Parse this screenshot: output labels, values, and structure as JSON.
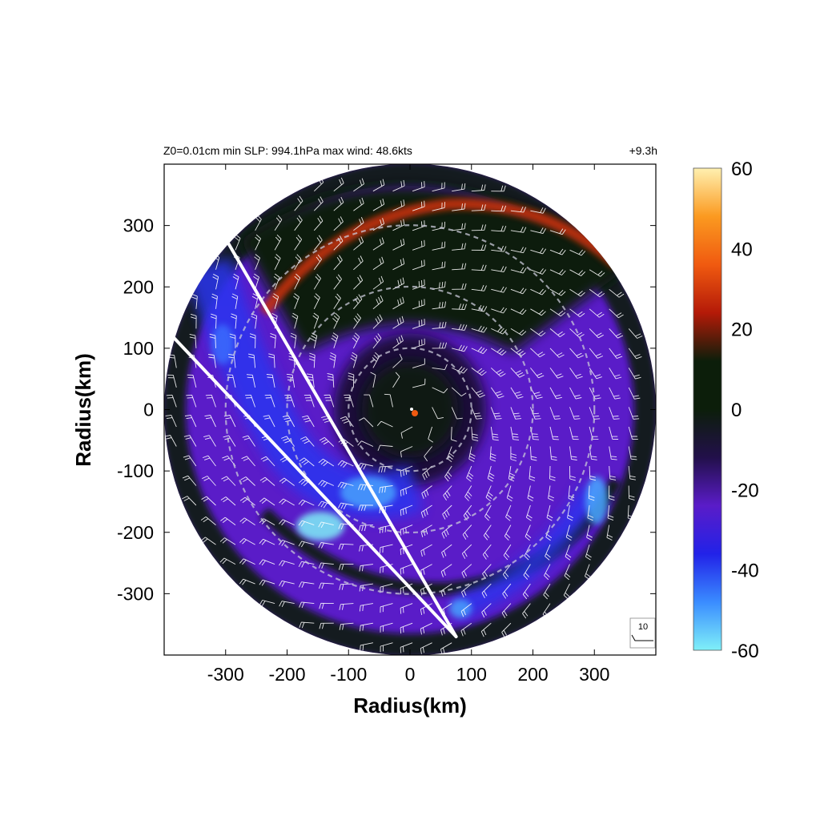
{
  "header": {
    "left": "Z0=0.01cm  min SLP: 994.1hPa   max wind: 48.6kts",
    "right": "+9.3h"
  },
  "chart_data": {
    "type": "heatmap",
    "description_source": "polar storm-relative field with wind barbs",
    "xlabel": "Radius(km)",
    "ylabel": "Radius(km)",
    "xlim": [
      -400,
      400
    ],
    "ylim": [
      -400,
      400
    ],
    "x_ticks": [
      -300,
      -200,
      -100,
      0,
      100,
      200,
      300
    ],
    "y_ticks": [
      300,
      200,
      100,
      0,
      -100,
      -200,
      -300
    ],
    "x_tick_labels": [
      "-300",
      "-200",
      "-100",
      "0",
      "100",
      "200",
      "300"
    ],
    "y_tick_labels": [
      "300",
      "200",
      "100",
      "0",
      "-100",
      "-200",
      "-300"
    ],
    "domain_radius_km": 400,
    "reference_circles_km": [
      100,
      200,
      300
    ],
    "storm_center": [
      0,
      0
    ],
    "track_lines": [
      {
        "from": [
          -295,
          270
        ],
        "to": [
          75,
          -370
        ]
      },
      {
        "from": [
          -385,
          118
        ],
        "to": [
          75,
          -370
        ]
      }
    ],
    "colorbar": {
      "min": -60,
      "max": 60,
      "ticks": [
        60,
        40,
        20,
        0,
        -20,
        -40,
        -60
      ],
      "tick_labels": [
        "60",
        "40",
        "20",
        "0",
        "-20",
        "-40",
        "-60"
      ],
      "colors": [
        "#7ff0f8",
        "#3a8cff",
        "#2222e8",
        "#5a1cc8",
        "#22104a",
        "#0c1e0a",
        "#0c1e0a",
        "#b41a08",
        "#f05a10",
        "#fb9a20",
        "#fff0b0"
      ]
    },
    "barb_reference": {
      "label": "10",
      "units": "kts"
    },
    "legend_placement": "bottom-right inset"
  },
  "colors": {
    "background": "#ffffff",
    "domain_fill": "#5a1cc8",
    "dark_band": "#0c1e0a",
    "warm_band": "#c8300c",
    "light_blue": "#7ff0f8",
    "track": "#ffffff",
    "barb": "#ffffff"
  }
}
